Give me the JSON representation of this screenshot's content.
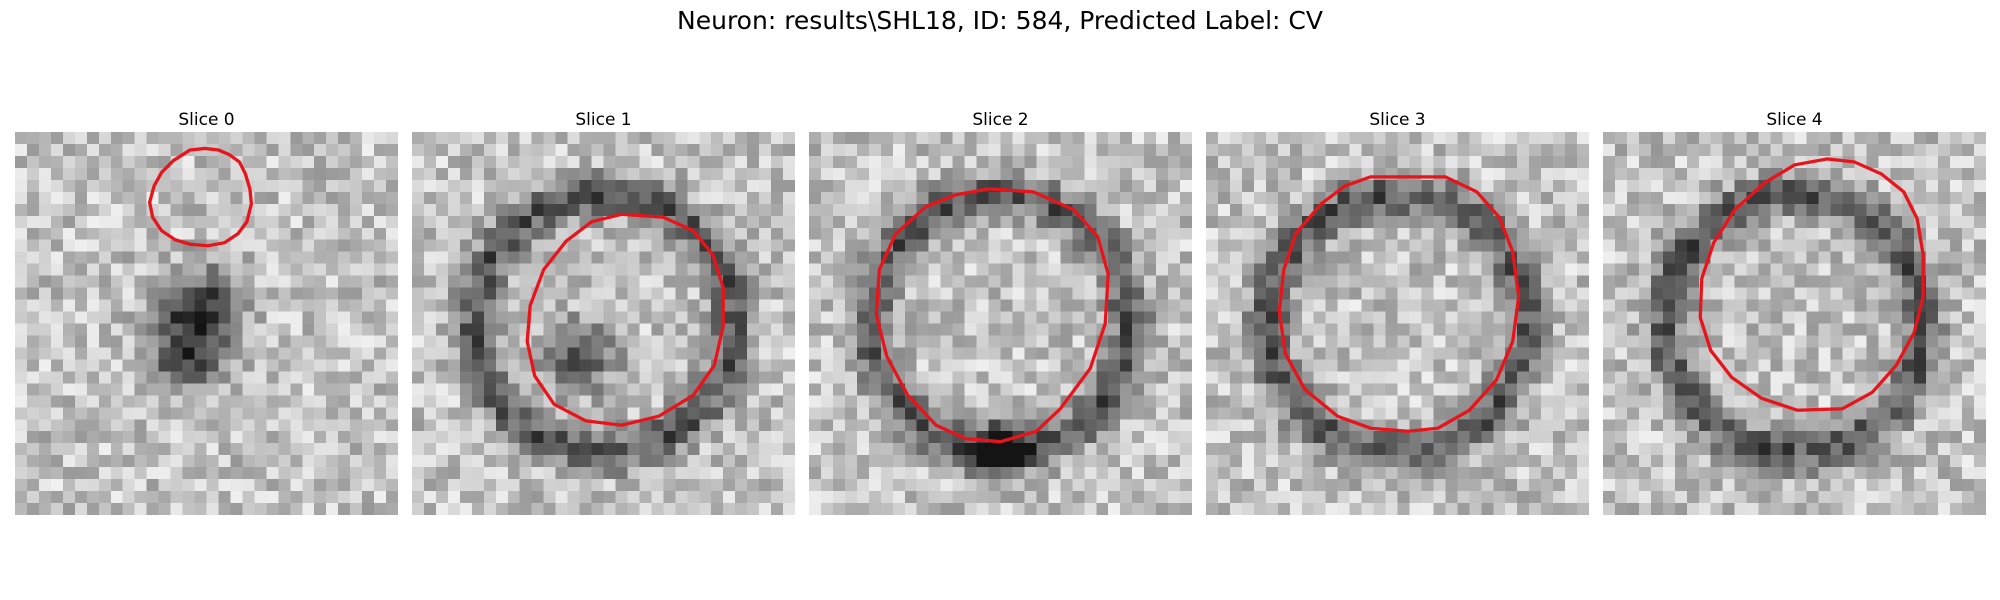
{
  "figure": {
    "title": "Neuron: results\\SHL18, ID: 584, Predicted Label: CV"
  },
  "panels": [
    {
      "title": "Slice 0",
      "seed": 11,
      "ring": 0,
      "blob": 1,
      "contour": [
        [
          117,
          12
        ],
        [
          127,
          11
        ],
        [
          136,
          12
        ],
        [
          143,
          15
        ],
        [
          150,
          20
        ],
        [
          154,
          28
        ],
        [
          157,
          38
        ],
        [
          158,
          48
        ],
        [
          155,
          60
        ],
        [
          149,
          68
        ],
        [
          140,
          74
        ],
        [
          129,
          76
        ],
        [
          117,
          75
        ],
        [
          107,
          72
        ],
        [
          98,
          66
        ],
        [
          92,
          57
        ],
        [
          90,
          47
        ],
        [
          93,
          36
        ],
        [
          98,
          27
        ],
        [
          106,
          19
        ]
      ]
    },
    {
      "title": "Slice 1",
      "seed": 23,
      "ring": 1,
      "blob": 1,
      "contour": [
        [
          140,
          55
        ],
        [
          168,
          57
        ],
        [
          188,
          66
        ],
        [
          201,
          82
        ],
        [
          208,
          104
        ],
        [
          208,
          130
        ],
        [
          202,
          156
        ],
        [
          188,
          176
        ],
        [
          165,
          190
        ],
        [
          140,
          196
        ],
        [
          116,
          193
        ],
        [
          95,
          182
        ],
        [
          82,
          163
        ],
        [
          77,
          140
        ],
        [
          79,
          116
        ],
        [
          88,
          92
        ],
        [
          103,
          73
        ],
        [
          120,
          60
        ]
      ]
    },
    {
      "title": "Slice 2",
      "seed": 37,
      "ring": 1,
      "blob": 2,
      "contour": [
        [
          120,
          38
        ],
        [
          150,
          40
        ],
        [
          177,
          52
        ],
        [
          193,
          70
        ],
        [
          200,
          95
        ],
        [
          198,
          128
        ],
        [
          188,
          158
        ],
        [
          168,
          185
        ],
        [
          152,
          200
        ],
        [
          128,
          207
        ],
        [
          105,
          205
        ],
        [
          85,
          196
        ],
        [
          66,
          176
        ],
        [
          52,
          150
        ],
        [
          45,
          122
        ],
        [
          47,
          92
        ],
        [
          58,
          68
        ],
        [
          78,
          50
        ],
        [
          98,
          42
        ]
      ]
    },
    {
      "title": "Slice 3",
      "seed": 51,
      "ring": 1,
      "blob": 0,
      "contour": [
        [
          110,
          30
        ],
        [
          160,
          30
        ],
        [
          181,
          40
        ],
        [
          196,
          57
        ],
        [
          205,
          80
        ],
        [
          209,
          110
        ],
        [
          205,
          140
        ],
        [
          194,
          166
        ],
        [
          176,
          186
        ],
        [
          155,
          198
        ],
        [
          135,
          200
        ],
        [
          110,
          198
        ],
        [
          88,
          190
        ],
        [
          66,
          172
        ],
        [
          53,
          148
        ],
        [
          49,
          120
        ],
        [
          52,
          92
        ],
        [
          60,
          68
        ],
        [
          77,
          48
        ],
        [
          93,
          36
        ]
      ]
    },
    {
      "title": "Slice 4",
      "seed": 67,
      "ring": 1,
      "blob": 0,
      "contour": [
        [
          150,
          18
        ],
        [
          168,
          20
        ],
        [
          186,
          28
        ],
        [
          201,
          40
        ],
        [
          210,
          58
        ],
        [
          214,
          82
        ],
        [
          214,
          110
        ],
        [
          208,
          134
        ],
        [
          196,
          156
        ],
        [
          180,
          174
        ],
        [
          160,
          185
        ],
        [
          130,
          186
        ],
        [
          106,
          178
        ],
        [
          86,
          164
        ],
        [
          72,
          146
        ],
        [
          65,
          124
        ],
        [
          66,
          98
        ],
        [
          74,
          74
        ],
        [
          88,
          52
        ],
        [
          108,
          34
        ],
        [
          128,
          22
        ]
      ]
    }
  ]
}
